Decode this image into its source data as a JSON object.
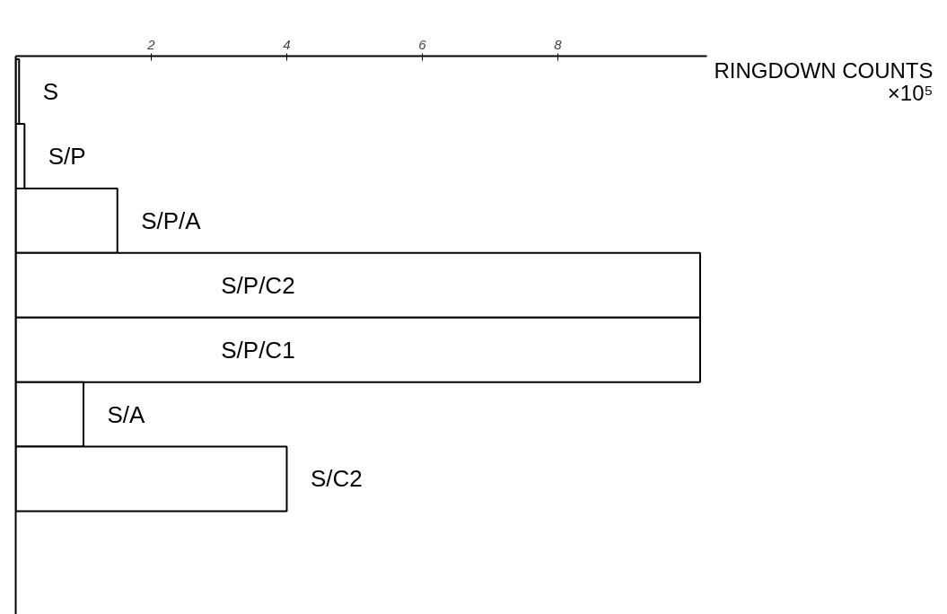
{
  "chart_data": {
    "type": "bar",
    "orientation": "horizontal",
    "xlabel": "RINGDOWN COUNTS ×10⁵",
    "categories": [
      "S",
      "S/P",
      "S/P/A",
      "S/P/C2",
      "S/P/C1",
      "S/A",
      "S/C2"
    ],
    "values": [
      0.05,
      0.13,
      1.5,
      10.1,
      10.1,
      1.0,
      4.0
    ],
    "color": "#ffffff",
    "xlim": [
      0,
      10.2
    ],
    "xticks": [
      2,
      4,
      6,
      8
    ],
    "grid": false
  }
}
